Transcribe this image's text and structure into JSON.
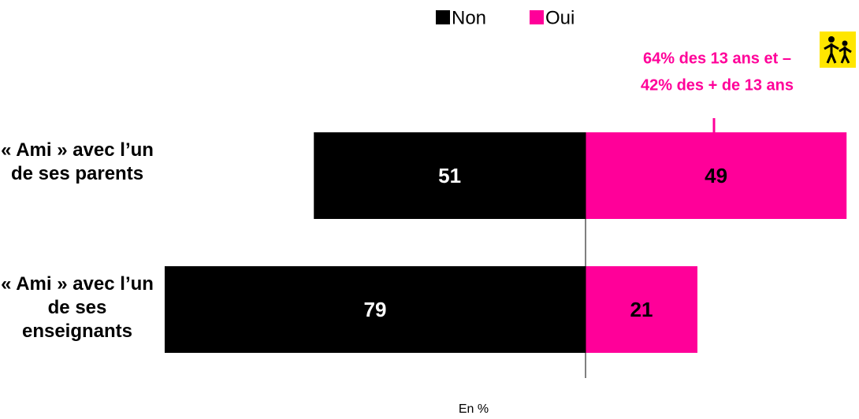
{
  "chart_data": {
    "type": "diverging-bar",
    "categories": [
      "« Ami » avec l’un de ses parents",
      "« Ami » avec l’un de ses enseignants"
    ],
    "series": [
      {
        "name": "Non",
        "color": "#000000",
        "values": [
          51,
          79
        ]
      },
      {
        "name": "Oui",
        "color": "#ff0099",
        "values": [
          49,
          21
        ]
      }
    ],
    "annotation": [
      "64% des 13 ans et –",
      "42% des + de 13 ans"
    ],
    "footnote": "En %"
  }
}
